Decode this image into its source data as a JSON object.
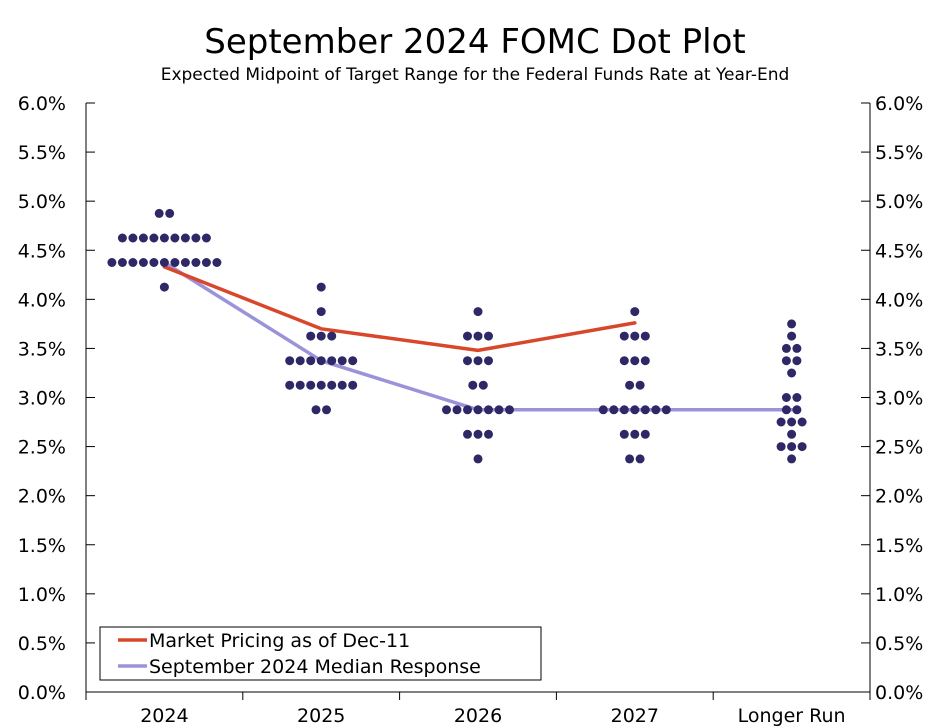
{
  "chart_data": {
    "type": "scatter",
    "title": "September 2024 FOMC Dot Plot",
    "subtitle": "Expected Midpoint of Target Range for the Federal Funds Rate at Year-End",
    "xlabel": "",
    "ylabel": "",
    "categories": [
      "2024",
      "2025",
      "2026",
      "2027",
      "Longer Run"
    ],
    "ylim": [
      0,
      6
    ],
    "y_ticks": [
      0,
      0.5,
      1,
      1.5,
      2,
      2.5,
      3,
      3.5,
      4,
      4.5,
      5,
      5.5,
      6
    ],
    "y_tick_labels": [
      "0.0%",
      "0.5%",
      "1.0%",
      "1.5%",
      "2.0%",
      "2.5%",
      "3.0%",
      "3.5%",
      "4.0%",
      "4.5%",
      "5.0%",
      "5.5%",
      "6.0%"
    ],
    "dot_color": "#2e2966",
    "dots": [
      {
        "category": "2024",
        "levels": [
          {
            "rate": 4.875,
            "count": 2
          },
          {
            "rate": 4.625,
            "count": 9
          },
          {
            "rate": 4.375,
            "count": 11
          },
          {
            "rate": 4.125,
            "count": 1
          }
        ]
      },
      {
        "category": "2025",
        "levels": [
          {
            "rate": 4.125,
            "count": 1
          },
          {
            "rate": 3.875,
            "count": 1
          },
          {
            "rate": 3.625,
            "count": 3
          },
          {
            "rate": 3.375,
            "count": 7
          },
          {
            "rate": 3.125,
            "count": 7
          },
          {
            "rate": 2.875,
            "count": 2
          }
        ]
      },
      {
        "category": "2026",
        "levels": [
          {
            "rate": 3.875,
            "count": 1
          },
          {
            "rate": 3.625,
            "count": 3
          },
          {
            "rate": 3.375,
            "count": 3
          },
          {
            "rate": 3.125,
            "count": 2
          },
          {
            "rate": 2.875,
            "count": 7
          },
          {
            "rate": 2.625,
            "count": 3
          },
          {
            "rate": 2.375,
            "count": 1
          }
        ]
      },
      {
        "category": "2027",
        "levels": [
          {
            "rate": 3.875,
            "count": 1
          },
          {
            "rate": 3.625,
            "count": 3
          },
          {
            "rate": 3.375,
            "count": 3
          },
          {
            "rate": 3.125,
            "count": 2
          },
          {
            "rate": 2.875,
            "count": 7
          },
          {
            "rate": 2.625,
            "count": 3
          },
          {
            "rate": 2.375,
            "count": 2
          }
        ]
      },
      {
        "category": "Longer Run",
        "levels": [
          {
            "rate": 3.75,
            "count": 1
          },
          {
            "rate": 3.625,
            "count": 1
          },
          {
            "rate": 3.5,
            "count": 2
          },
          {
            "rate": 3.375,
            "count": 2
          },
          {
            "rate": 3.25,
            "count": 1
          },
          {
            "rate": 3.0,
            "count": 2
          },
          {
            "rate": 2.875,
            "count": 2
          },
          {
            "rate": 2.75,
            "count": 3
          },
          {
            "rate": 2.625,
            "count": 1
          },
          {
            "rate": 2.5,
            "count": 3
          },
          {
            "rate": 2.375,
            "count": 1
          }
        ]
      }
    ],
    "series": [
      {
        "name": "Market Pricing as of Dec-11",
        "color": "#d9472b",
        "categories": [
          "2024",
          "2025",
          "2026",
          "2027"
        ],
        "values": [
          4.33,
          3.7,
          3.48,
          3.76
        ]
      },
      {
        "name": "September 2024 Median Response",
        "color": "#9b93d9",
        "categories": [
          "2024",
          "2025",
          "2026",
          "2027",
          "Longer Run"
        ],
        "values": [
          4.375,
          3.375,
          2.875,
          2.875,
          2.875
        ]
      }
    ],
    "legend_position": "bottom-left",
    "grid": false
  }
}
